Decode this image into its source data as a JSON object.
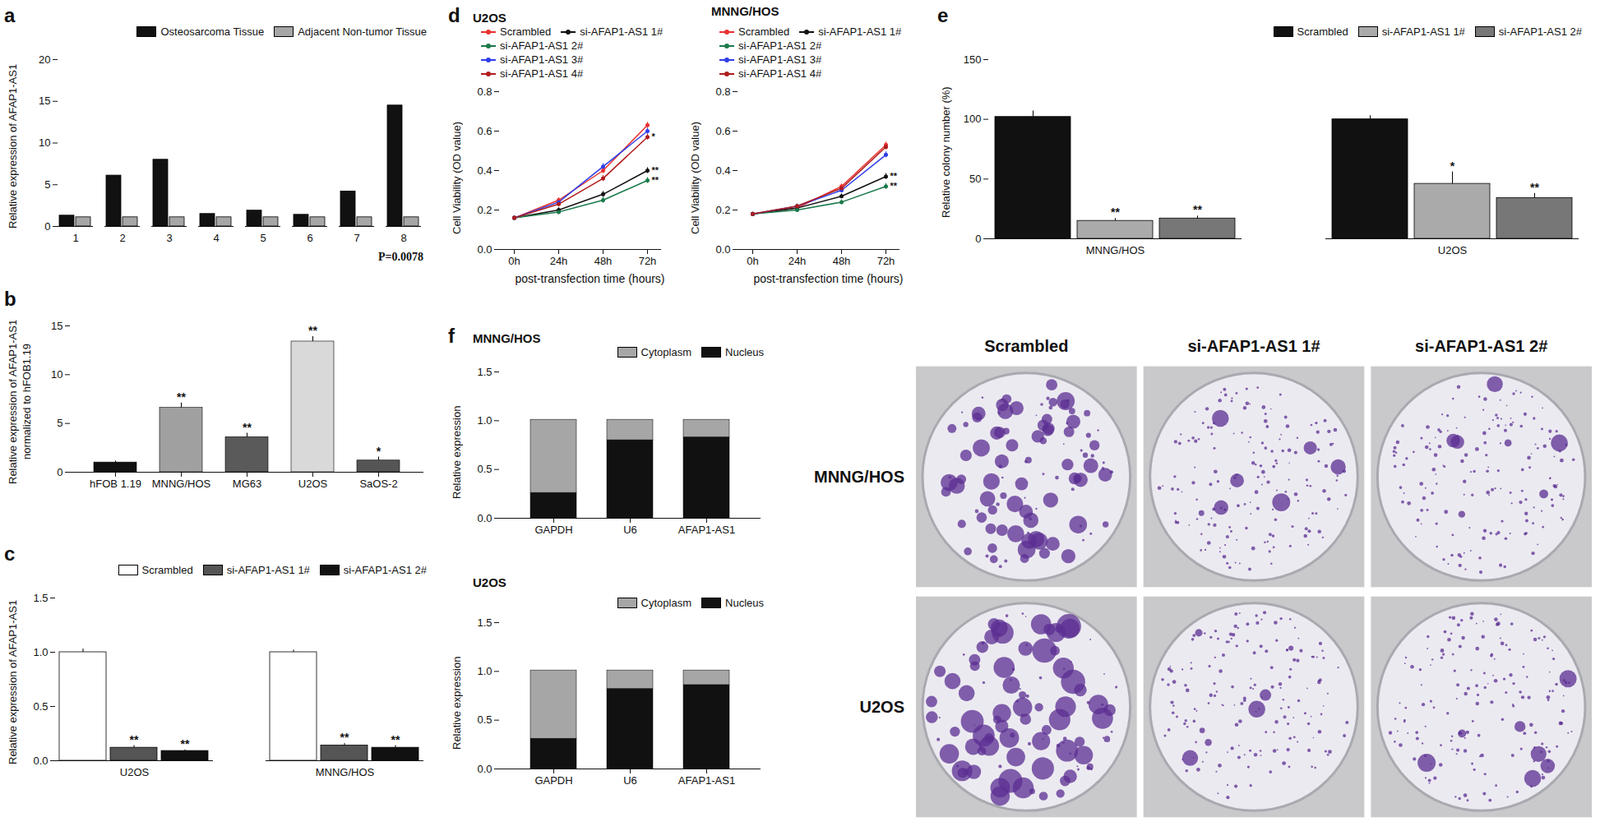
{
  "chart_data": [
    {
      "panel": "a",
      "type": "bar",
      "categories": [
        "1",
        "2",
        "3",
        "4",
        "5",
        "6",
        "7",
        "8"
      ],
      "series": [
        {
          "name": "Osteosarcoma Tissue",
          "color": "#111111",
          "values": [
            1.3,
            6.1,
            8.0,
            1.5,
            1.9,
            1.4,
            4.2,
            14.5
          ]
        },
        {
          "name": "Adjacent Non-tumor Tissue",
          "color": "#a6a6a6",
          "values": [
            1.1,
            1.1,
            1.1,
            1.1,
            1.1,
            1.1,
            1.1,
            1.1
          ]
        }
      ],
      "ylabel": "Relative expression of AFAP1-AS1",
      "ylim": [
        0,
        20
      ],
      "yticks": [
        0,
        5,
        10,
        15,
        20
      ],
      "legend": "top-right",
      "annotations": [
        "P=0.0078"
      ]
    },
    {
      "panel": "b",
      "type": "bar",
      "categories": [
        "hFOB 1.19",
        "MNNG/HOS",
        "MG63",
        "U2OS",
        "SaOS-2"
      ],
      "values": [
        1.0,
        6.6,
        3.6,
        13.4,
        1.2
      ],
      "errors": [
        0.15,
        0.5,
        0.4,
        0.5,
        0.35
      ],
      "significance": [
        null,
        "**",
        "**",
        "**",
        "*"
      ],
      "colors": [
        "#111111",
        "#a0a0a0",
        "#5a5a5a",
        "#d9d9d9",
        "#555555"
      ],
      "ylabel": "Relative expression of AFAP1-AS1\nnormalized to hFOB1.19",
      "ylim": [
        0,
        15
      ],
      "yticks": [
        0,
        5,
        10,
        15
      ]
    },
    {
      "panel": "c",
      "type": "bar",
      "categories": [
        "U2OS",
        "MNNG/HOS"
      ],
      "series": [
        {
          "name": "Scrambled",
          "color": "#ffffff",
          "values": [
            1.0,
            1.0
          ],
          "errors": [
            0.03,
            0.02
          ],
          "significance": [
            null,
            null
          ]
        },
        {
          "name": "si-AFAP1-AS1 1#",
          "color": "#555555",
          "values": [
            0.12,
            0.14
          ],
          "errors": [
            0.02,
            0.02
          ],
          "significance": [
            "**",
            "**"
          ]
        },
        {
          "name": "si-AFAP1-AS1 2#",
          "color": "#111111",
          "values": [
            0.09,
            0.12
          ],
          "errors": [
            0.01,
            0.02
          ],
          "significance": [
            "**",
            "**"
          ]
        }
      ],
      "ylabel": "Relative expression of AFAP1-AS1",
      "ylim": [
        0,
        1.5
      ],
      "yticks": [
        {
          "value": 0,
          "label": "0.0"
        },
        0.5,
        {
          "value": 1,
          "label": "1.0"
        },
        1.5
      ],
      "legend": "top-right"
    },
    {
      "panel": "d",
      "type": "line",
      "title": "U2OS",
      "categories": [
        "0h",
        "24h",
        "48h",
        "72h"
      ],
      "series": [
        {
          "name": "Scrambled",
          "color": "#e8312f",
          "values": [
            0.16,
            0.25,
            0.4,
            0.63
          ],
          "errors": [
            0.01,
            0.012,
            0.015,
            0.015
          ],
          "significance": [
            null,
            null,
            null,
            null
          ]
        },
        {
          "name": "si-AFAP1-AS1 1#",
          "color": "#111111",
          "values": [
            0.16,
            0.2,
            0.28,
            0.4
          ],
          "errors": [
            0.01,
            0.012,
            0.015,
            0.015
          ],
          "significance": [
            null,
            null,
            null,
            "**"
          ]
        },
        {
          "name": "si-AFAP1-AS1 2#",
          "color": "#1a7a4a",
          "values": [
            0.16,
            0.19,
            0.25,
            0.35
          ],
          "errors": [
            0.01,
            0.012,
            0.015,
            0.015
          ],
          "significance": [
            null,
            null,
            null,
            "**"
          ]
        },
        {
          "name": "si-AFAP1-AS1 3#",
          "color": "#2f3de8",
          "values": [
            0.16,
            0.24,
            0.42,
            0.6
          ],
          "errors": [
            0.01,
            0.012,
            0.015,
            0.015
          ],
          "significance": [
            null,
            null,
            null,
            null
          ]
        },
        {
          "name": "si-AFAP1-AS1 4#",
          "color": "#b01c1c",
          "values": [
            0.16,
            0.23,
            0.36,
            0.57
          ],
          "errors": [
            0.01,
            0.012,
            0.015,
            0.015
          ],
          "significance": [
            null,
            null,
            null,
            "*"
          ]
        }
      ],
      "marker": "circle",
      "xlabel": "post-transfection time (hours)",
      "ylabel": "Cell Viability (OD value)",
      "ylim": [
        0,
        0.8
      ],
      "yticks": [
        {
          "value": 0,
          "label": "0.0"
        },
        0.2,
        0.4,
        0.6,
        0.8
      ],
      "legend": "top-left"
    },
    {
      "type": "line",
      "title": "MNNG/HOS",
      "categories": [
        "0h",
        "24h",
        "48h",
        "72h"
      ],
      "series": [
        {
          "name": "Scrambled",
          "color": "#e8312f",
          "values": [
            0.18,
            0.21,
            0.32,
            0.53
          ],
          "errors": [
            0.005,
            0.01,
            0.012,
            0.015
          ],
          "significance": [
            null,
            null,
            null,
            null
          ]
        },
        {
          "name": "si-AFAP1-AS1 1#",
          "color": "#111111",
          "values": [
            0.18,
            0.21,
            0.27,
            0.37
          ],
          "errors": [
            0.005,
            0.01,
            0.012,
            0.015
          ],
          "significance": [
            null,
            null,
            null,
            "**"
          ]
        },
        {
          "name": "si-AFAP1-AS1 2#",
          "color": "#1a7a4a",
          "values": [
            0.18,
            0.2,
            0.24,
            0.32
          ],
          "errors": [
            0.005,
            0.01,
            0.012,
            0.015
          ],
          "significance": [
            null,
            null,
            null,
            "**"
          ]
        },
        {
          "name": "si-AFAP1-AS1 3#",
          "color": "#2f3de8",
          "values": [
            0.18,
            0.22,
            0.3,
            0.48
          ],
          "errors": [
            0.005,
            0.01,
            0.012,
            0.015
          ],
          "significance": [
            null,
            null,
            null,
            null
          ]
        },
        {
          "name": "si-AFAP1-AS1 4#",
          "color": "#b01c1c",
          "values": [
            0.18,
            0.22,
            0.31,
            0.52
          ],
          "errors": [
            0.005,
            0.01,
            0.012,
            0.015
          ],
          "significance": [
            null,
            null,
            null,
            null
          ]
        }
      ],
      "marker": "circle",
      "xlabel": "post-transfection time (hours)",
      "ylabel": "Cell Viability (OD value)",
      "ylim": [
        0,
        0.8
      ],
      "yticks": [
        {
          "value": 0,
          "label": "0.0"
        },
        0.2,
        0.4,
        0.6,
        0.8
      ],
      "legend": "top-left"
    },
    {
      "panel": "e",
      "type": "bar",
      "categories": [
        "MNNG/HOS",
        "U2OS"
      ],
      "series": [
        {
          "name": "Scrambled",
          "color": "#111111",
          "values": [
            102,
            100
          ],
          "errors": [
            5,
            3
          ],
          "significance": [
            null,
            null
          ]
        },
        {
          "name": "si-AFAP1-AS1 1#",
          "color": "#aaaaaa",
          "values": [
            15,
            46
          ],
          "errors": [
            2,
            10
          ],
          "significance": [
            "**",
            "*"
          ]
        },
        {
          "name": "si-AFAP1-AS1 2#",
          "color": "#777777",
          "values": [
            17,
            34
          ],
          "errors": [
            2,
            4
          ],
          "significance": [
            "**",
            "**"
          ]
        }
      ],
      "ylabel": "Relative colony number (%)",
      "ylim": [
        0,
        150
      ],
      "yticks": [
        0,
        50,
        100,
        150
      ],
      "legend": "top-right"
    },
    {
      "panel": "f",
      "type": "bar",
      "title": "MNNG/HOS",
      "stacked": true,
      "categories": [
        "GAPDH",
        "U6",
        "AFAP1-AS1"
      ],
      "series": [
        {
          "name": "Cytoplasm",
          "color": "#a6a6a6",
          "values": [
            0.75,
            0.21,
            0.18
          ]
        },
        {
          "name": "Nucleus",
          "color": "#111111",
          "values": [
            0.26,
            0.8,
            0.83
          ]
        }
      ],
      "ylabel": "Relative expression",
      "ylim": [
        0,
        1.5
      ],
      "yticks": [
        {
          "value": 0,
          "label": "0.0"
        },
        0.5,
        {
          "value": 1,
          "label": "1.0"
        },
        1.5
      ],
      "legend": "top-right"
    },
    {
      "type": "bar",
      "title": "U2OS",
      "stacked": true,
      "categories": [
        "GAPDH",
        "U6",
        "AFAP1-AS1"
      ],
      "series": [
        {
          "name": "Cytoplasm",
          "color": "#a6a6a6",
          "values": [
            0.7,
            0.19,
            0.15
          ]
        },
        {
          "name": "Nucleus",
          "color": "#111111",
          "values": [
            0.31,
            0.82,
            0.86
          ]
        }
      ],
      "ylabel": "Relative expression",
      "ylim": [
        0,
        1.5
      ],
      "yticks": [
        {
          "value": 0,
          "label": "0.0"
        },
        0.5,
        {
          "value": 1,
          "label": "1.0"
        },
        1.5
      ],
      "legend": "top-right"
    }
  ],
  "image_panel": {
    "columns": [
      "Scrambled",
      "si-AFAP1-AS1 1#",
      "si-AFAP1-AS1 2#"
    ],
    "rows": [
      "MNNG/HOS",
      "U2OS"
    ]
  }
}
